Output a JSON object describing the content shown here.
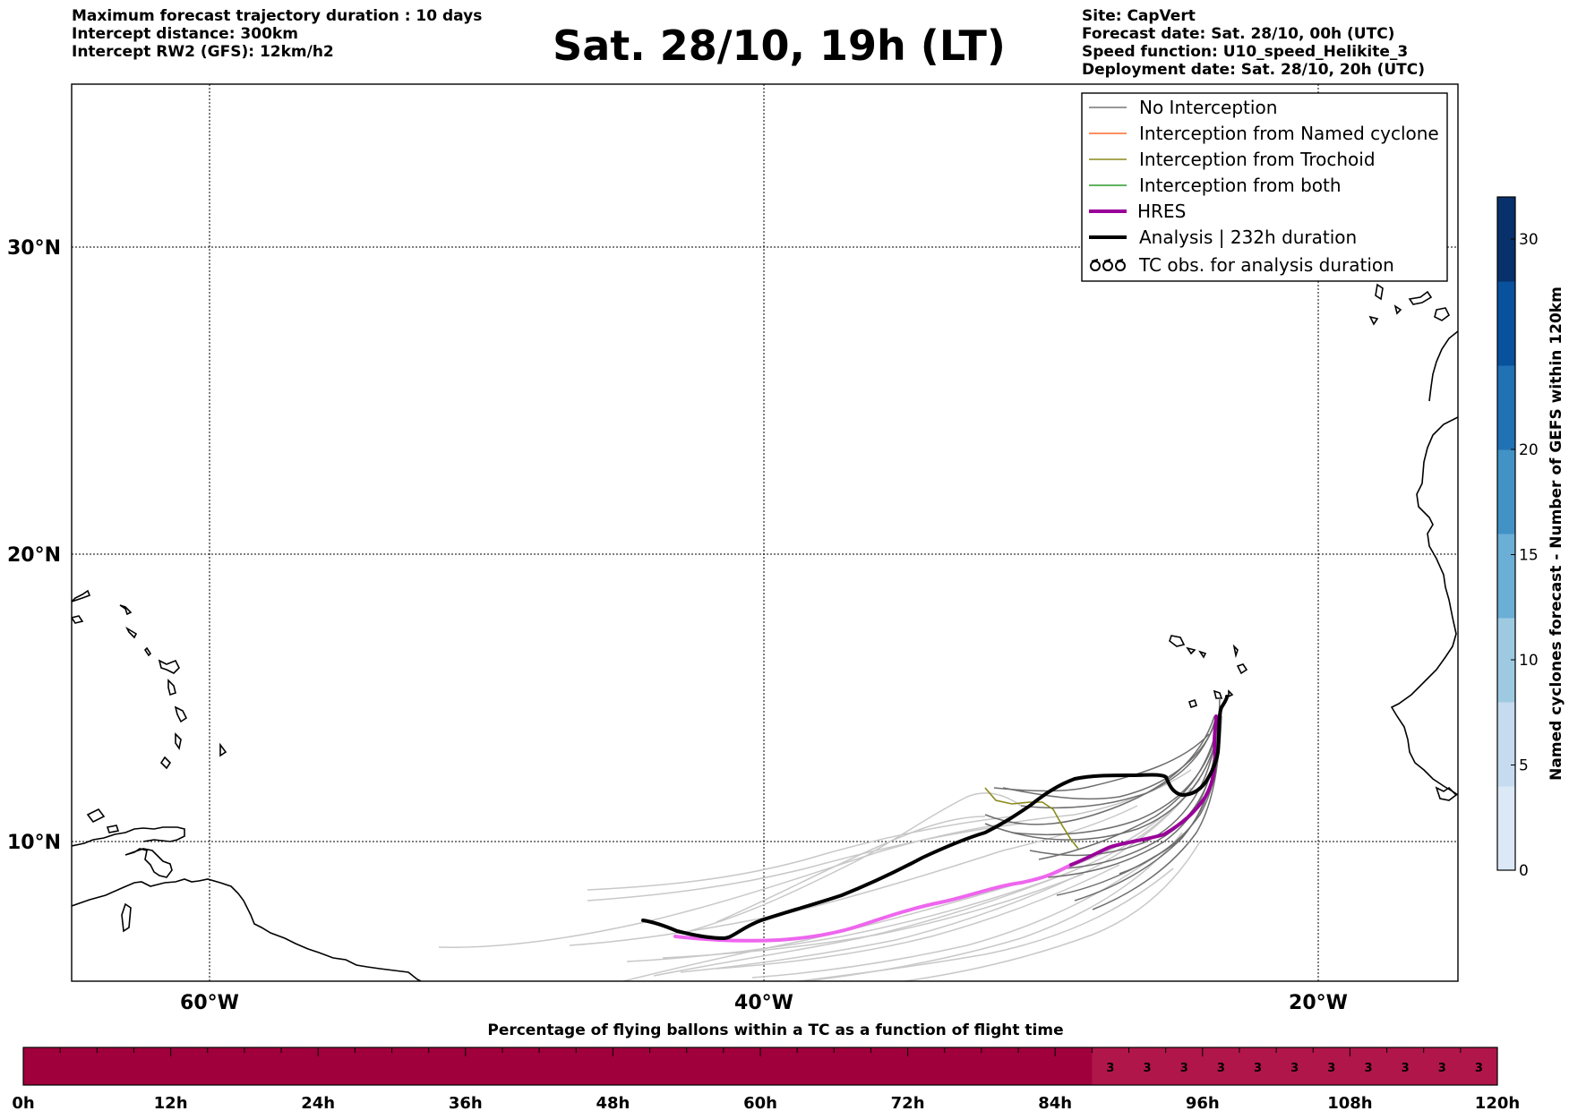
{
  "header": {
    "left_lines": [
      "Maximum forecast trajectory duration : 10 days",
      "Intercept distance: 300km",
      "Intercept RW2 (GFS):  12km/h2"
    ],
    "title": "Sat. 28/10, 19h (LT)",
    "right_lines": [
      "Site: CapVert",
      "Forecast date: Sat. 28/10, 00h (UTC)",
      "Speed function: U10_speed_Helikite_3",
      "Deployment date: Sat. 28/10, 20h (UTC)"
    ]
  },
  "map": {
    "lat_labels": [
      "30°N",
      "20°N",
      "10°N"
    ],
    "lon_labels": [
      "60°W",
      "40°W",
      "20°W"
    ],
    "lon_range": [
      -65,
      -15
    ],
    "lat_range": [
      5,
      34.2
    ],
    "colors": {
      "no_interception": "#777777",
      "light_member": "#c8c8c8",
      "named_cyclone": "#ff6a2b",
      "trochoid": "#8a8a1a",
      "both": "#2a9a2a",
      "hres_legend": "#990099",
      "hres_track": "#ee66ee",
      "analysis": "#000000"
    }
  },
  "legend": {
    "items": [
      {
        "label": "No Interception",
        "icon": "thin-gray-line"
      },
      {
        "label": "Interception from Named cyclone",
        "icon": "thin-orange-line"
      },
      {
        "label": "Interception from Trochoid",
        "icon": "thin-olive-line"
      },
      {
        "label": "Interception from both",
        "icon": "thin-green-line"
      },
      {
        "label": "HRES",
        "icon": "thick-purple-line"
      },
      {
        "label": "Analysis | 232h duration",
        "icon": "thick-black-line"
      },
      {
        "label": "TC obs. for analysis duration",
        "icon": "cyclone-symbols"
      }
    ]
  },
  "colorbar": {
    "label": "Named cyclones forecast - Number of GEFS within 120km",
    "ticks": [
      "0",
      "5",
      "10",
      "15",
      "20",
      "30"
    ],
    "tick_values": [
      0,
      5,
      10,
      15,
      20,
      30
    ],
    "range": [
      0,
      32
    ],
    "colors": [
      "#dbe9f6",
      "#c6dbef",
      "#9ecae1",
      "#6baed6",
      "#4292c6",
      "#2171b5",
      "#08519c",
      "#08306b"
    ]
  },
  "bottom_bar": {
    "title": "Percentage of flying ballons within a TC as a function of flight time",
    "tick_labels": [
      "0h",
      "12h",
      "24h",
      "36h",
      "48h",
      "60h",
      "72h",
      "84h",
      "96h",
      "108h",
      "120h"
    ],
    "hours_range": [
      0,
      120
    ],
    "cell_hours": 3,
    "base_color": "#a0003c",
    "highlight_color": "#b0164a",
    "highlight_from_hour": 87,
    "cell_value_label": "3"
  }
}
